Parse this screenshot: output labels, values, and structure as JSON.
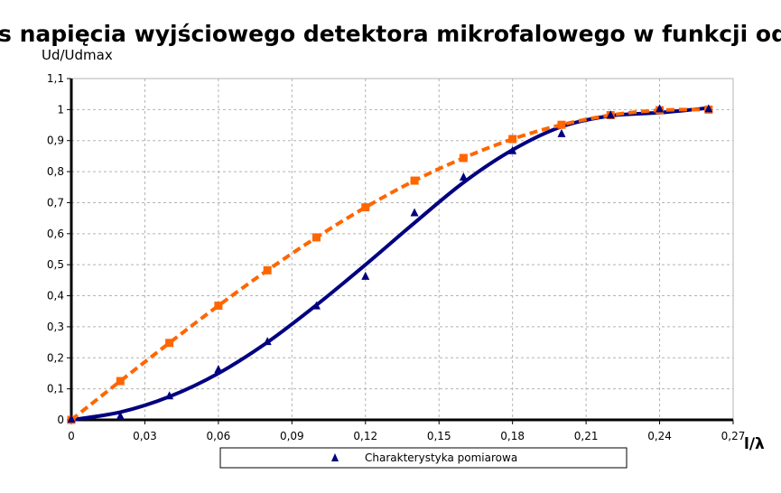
{
  "chart_data": {
    "type": "line",
    "title": "s napięcia wyjściowego detektora mikrofalowego w funkcji odległ",
    "ylabel": "Ud/Udmax",
    "xlabel": "l/λ",
    "xlim": [
      0,
      0.27
    ],
    "ylim": [
      0,
      1.1
    ],
    "x_ticks": [
      "0",
      "0,03",
      "0,06",
      "0,09",
      "0,12",
      "0,15",
      "0,18",
      "0,21",
      "0,24",
      "0,27"
    ],
    "y_ticks": [
      "0",
      "0,1",
      "0,2",
      "0,3",
      "0,4",
      "0,5",
      "0,6",
      "0,7",
      "0,8",
      "0,9",
      "1",
      "1,1"
    ],
    "grid": true,
    "legend_position": "bottom",
    "series": [
      {
        "name": "Charakterystyka pomiarowa",
        "marker": "triangle",
        "color": "#000080",
        "x": [
          0,
          0.02,
          0.04,
          0.06,
          0.08,
          0.1,
          0.12,
          0.14,
          0.16,
          0.18,
          0.2,
          0.22,
          0.24,
          0.26
        ],
        "y": [
          0,
          0.01,
          0.075,
          0.16,
          0.25,
          0.365,
          0.46,
          0.665,
          0.78,
          0.865,
          0.92,
          0.98,
          1.0,
          1.0
        ]
      },
      {
        "marker": "none",
        "color": "#000080",
        "style": "solid",
        "x": [
          0,
          0.02,
          0.04,
          0.06,
          0.08,
          0.1,
          0.12,
          0.14,
          0.16,
          0.18,
          0.2,
          0.22,
          0.24,
          0.26
        ],
        "y": [
          0,
          0.025,
          0.075,
          0.15,
          0.25,
          0.37,
          0.5,
          0.635,
          0.765,
          0.87,
          0.945,
          0.98,
          0.99,
          1.005
        ]
      },
      {
        "marker": "square",
        "color": "#ff6600",
        "style": "dashed",
        "x": [
          0,
          0.02,
          0.04,
          0.06,
          0.08,
          0.1,
          0.12,
          0.14,
          0.16,
          0.18,
          0.2,
          0.22,
          0.24,
          0.26
        ],
        "y": [
          0,
          0.125,
          0.248,
          0.368,
          0.482,
          0.588,
          0.685,
          0.771,
          0.844,
          0.905,
          0.951,
          0.982,
          0.998,
          1.0
        ]
      }
    ]
  }
}
